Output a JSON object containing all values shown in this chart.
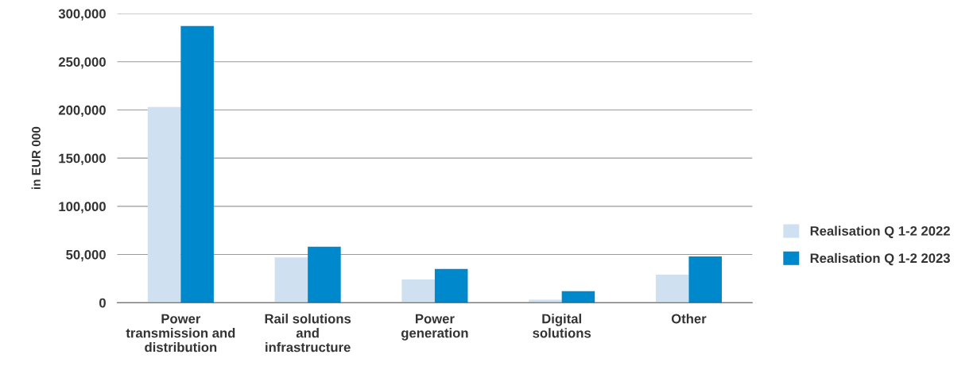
{
  "chart_data": {
    "type": "bar",
    "ylabel": "in EUR 000",
    "categories": [
      "Power\ntransmission and\ndistribution",
      "Rail solutions\nand\ninfrastructure",
      "Power\ngeneration",
      "Digital\nsolutions",
      "Other"
    ],
    "series": [
      {
        "name": "Realisation Q 1-2 2022",
        "color": "#cfe0f0",
        "values": [
          203000,
          47000,
          24000,
          3000,
          29000
        ]
      },
      {
        "name": "Realisation Q 1-2 2023",
        "color": "#0088cc",
        "values": [
          287000,
          58000,
          35000,
          12000,
          48000
        ]
      }
    ],
    "ylim": [
      0,
      300000
    ],
    "yticks": [
      {
        "value": 0,
        "label": "0"
      },
      {
        "value": 50000,
        "label": "50,000"
      },
      {
        "value": 100000,
        "label": "100,000"
      },
      {
        "value": 150000,
        "label": "150,000"
      },
      {
        "value": 200000,
        "label": "200,000"
      },
      {
        "value": 250000,
        "label": "250,000"
      },
      {
        "value": 300000,
        "label": "300,000"
      }
    ],
    "grid": "y",
    "legend": "right"
  }
}
